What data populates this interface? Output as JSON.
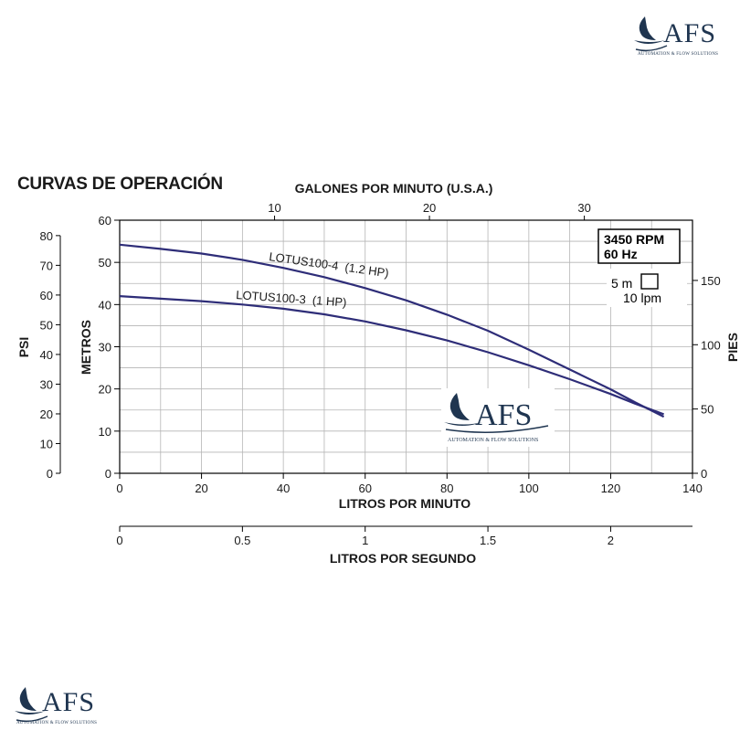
{
  "branding": {
    "logo_text": "AFS",
    "tagline": "AUTOMATION & FLOW SOLUTIONS"
  },
  "section_title": "CURVAS DE OPERACIÓN",
  "info_box": {
    "rpm": "3450 RPM",
    "hz": "60 Hz"
  },
  "grid_scale": {
    "vertical": "5 m",
    "horizontal": "10 lpm"
  },
  "colors": {
    "curve": "#2e2d78",
    "grid": "#b5b5b5",
    "axis": "#000000"
  },
  "chart_data": {
    "type": "line",
    "xlabel": "LITROS POR MINUTO",
    "ylabel": "METROS",
    "xlim": [
      0,
      140
    ],
    "ylim": [
      0,
      60
    ],
    "x_ticks": [
      0,
      20,
      40,
      60,
      80,
      100,
      120,
      140
    ],
    "y_ticks": [
      0,
      10,
      20,
      30,
      40,
      50,
      60
    ],
    "grid": true,
    "secondary_axes": {
      "top": {
        "label": "GALONES POR MINUTO (U.S.A.)",
        "ticks": [
          10,
          20,
          30
        ],
        "units_per_primary": 0.264172
      },
      "left": {
        "label": "PSI",
        "ticks": [
          0,
          10,
          20,
          30,
          40,
          50,
          60,
          70,
          80
        ],
        "units_per_primary": 1.4198
      },
      "right": {
        "label": "PIES",
        "ticks": [
          0,
          50,
          100,
          150
        ],
        "units_per_primary": 3.28084
      },
      "bottom": {
        "label": "LITROS POR SEGUNDO",
        "ticks": [
          0,
          0.5,
          1,
          1.5,
          2
        ],
        "units_per_primary": 0.0166667
      }
    },
    "series": [
      {
        "name": "LOTUS100-4  (1.2 HP)",
        "x": [
          0,
          10,
          20,
          30,
          40,
          50,
          60,
          70,
          80,
          90,
          100,
          110,
          120,
          126,
          133
        ],
        "y": [
          54.2,
          53.2,
          52.1,
          50.6,
          48.7,
          46.5,
          43.9,
          41.0,
          37.6,
          33.8,
          29.3,
          24.6,
          19.9,
          16.8,
          13.4
        ]
      },
      {
        "name": "LOTUS100-3  (1 HP)",
        "x": [
          0,
          10,
          20,
          30,
          40,
          50,
          60,
          70,
          80,
          90,
          100,
          110,
          120,
          126,
          133
        ],
        "y": [
          42.0,
          41.4,
          40.8,
          40.0,
          39.0,
          37.7,
          36.0,
          33.9,
          31.5,
          28.7,
          25.6,
          22.3,
          18.8,
          16.5,
          14.0
        ]
      }
    ]
  }
}
